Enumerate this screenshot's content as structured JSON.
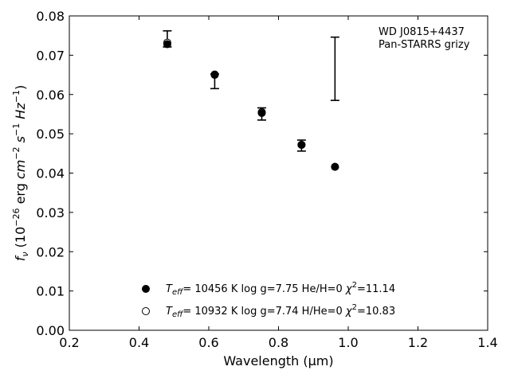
{
  "chart_data": {
    "type": "scatter",
    "xlabel": "Wavelength (μm)",
    "ylabel_parts": [
      "f",
      "ν",
      " (10",
      "−26",
      " erg ",
      "cm",
      "−2",
      " ",
      "s",
      "−1",
      " ",
      "Hz",
      "−1",
      ")"
    ],
    "xlim": [
      0.2,
      1.4
    ],
    "ylim": [
      0.0,
      0.08
    ],
    "x_ticks": [
      "0.2",
      "0.4",
      "0.6",
      "0.8",
      "1.0",
      "1.2",
      "1.4"
    ],
    "y_ticks": [
      "0.00",
      "0.01",
      "0.02",
      "0.03",
      "0.04",
      "0.05",
      "0.06",
      "0.07",
      "0.08"
    ],
    "x_tick_values": [
      0.2,
      0.4,
      0.6,
      0.8,
      1.0,
      1.2,
      1.4
    ],
    "y_tick_values": [
      0.0,
      0.01,
      0.02,
      0.03,
      0.04,
      0.05,
      0.06,
      0.07,
      0.08
    ],
    "annotation": [
      "WD J0815+4437",
      "Pan-STARRS grizy"
    ],
    "observed": {
      "x": [
        0.481,
        0.617,
        0.752,
        0.866,
        0.962
      ],
      "y_low": [
        0.0721,
        0.0615,
        0.0535,
        0.0456,
        0.0585
      ],
      "y_high": [
        0.0762,
        0.0652,
        0.0566,
        0.0484,
        0.0746
      ]
    },
    "series": [
      {
        "marker": "filled",
        "label_parts": [
          "T",
          "eff",
          "= 10456 K  log g=7.75  He/H=0  ",
          "χ",
          "2",
          "=11.14"
        ],
        "x": [
          0.481,
          0.617,
          0.752,
          0.866,
          0.962
        ],
        "y": [
          0.0728,
          0.065,
          0.0553,
          0.0472,
          0.0416
        ]
      },
      {
        "marker": "open",
        "label_parts": [
          "T",
          "eff",
          "= 10932 K  log g=7.74  H/He=0  ",
          "χ",
          "2",
          "=10.83"
        ],
        "x": [
          0.481,
          0.617,
          0.752,
          0.866,
          0.962
        ],
        "y": [
          0.0732,
          0.0651,
          0.0555,
          0.0472,
          0.0416
        ]
      }
    ],
    "colors": {
      "ink": "#000000",
      "background": "#ffffff"
    },
    "grid": false,
    "legend_position": "lower-center"
  }
}
